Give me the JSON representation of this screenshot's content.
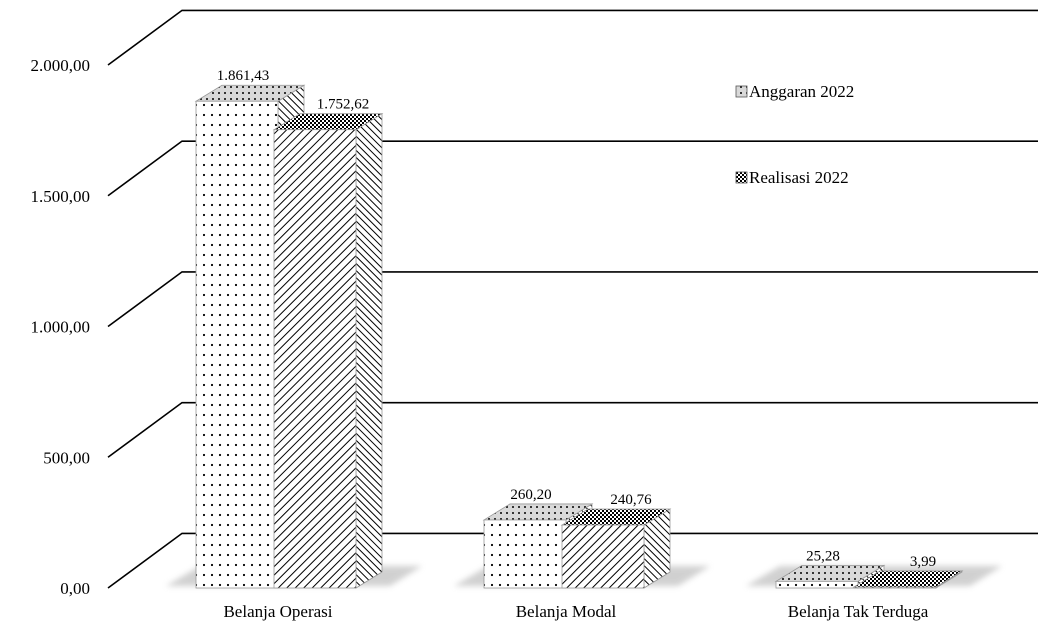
{
  "chart_data": {
    "type": "bar",
    "categories": [
      "Belanja Operasi",
      "Belanja Modal",
      "Belanja Tak Terduga"
    ],
    "series": [
      {
        "name": "Anggaran 2022",
        "values": [
          1861.43,
          260.2,
          25.28
        ],
        "labels": [
          "1.861,43",
          "260,20",
          "25,28"
        ]
      },
      {
        "name": "Realisasi 2022",
        "values": [
          1752.62,
          240.76,
          3.99
        ],
        "labels": [
          "1.752,62",
          "240,76",
          "3,99"
        ]
      }
    ],
    "yticks": [
      0,
      500,
      1000,
      1500,
      2000
    ],
    "ytick_labels": [
      "0,00",
      "500,00",
      "1.000,00",
      "1.500,00",
      "2.000,00"
    ],
    "ylim": [
      0,
      2000
    ],
    "title": "",
    "xlabel": "",
    "ylabel": "",
    "legend_position": "top-right",
    "grid": true,
    "style": "3d-clustered-column",
    "patterns": {
      "Anggaran 2022": "dots",
      "Realisasi 2022": "diagonal-stripes"
    },
    "colors": {
      "lines": "#000000",
      "bar_fill": "#ffffff",
      "shadow": "#cccccc",
      "edge": "#999999"
    }
  }
}
